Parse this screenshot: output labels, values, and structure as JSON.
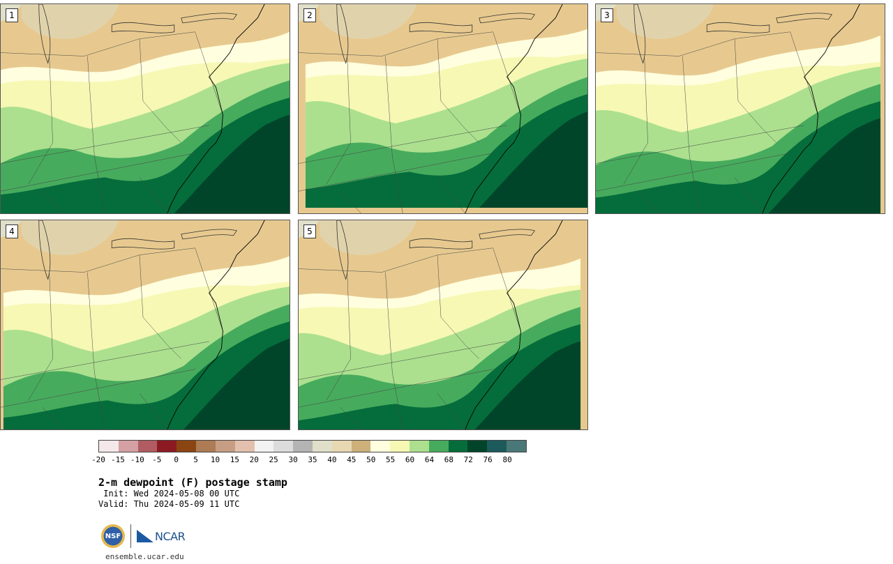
{
  "panels": [
    {
      "label": "1"
    },
    {
      "label": "2"
    },
    {
      "label": "3"
    },
    {
      "label": "4"
    },
    {
      "label": "5"
    }
  ],
  "colorbar": {
    "colors": [
      "#f5e8ea",
      "#d4a0a4",
      "#b05c62",
      "#8c1a22",
      "#8b4513",
      "#ad7b54",
      "#c79e84",
      "#e2c0ad",
      "#f2f2f2",
      "#dcdcdc",
      "#b4b4b4",
      "#e0dfc9",
      "#e8d8b2",
      "#cdb07a",
      "#fffede",
      "#f6f8b4",
      "#ace08e",
      "#47ab5d",
      "#056d3b",
      "#00452a",
      "#1d5a5c",
      "#4a7878"
    ],
    "ticks": [
      "-20",
      "-15",
      "-10",
      "-5",
      "0",
      "5",
      "10",
      "15",
      "20",
      "25",
      "30",
      "35",
      "40",
      "45",
      "50",
      "55",
      "60",
      "64",
      "68",
      "72",
      "76",
      "80"
    ]
  },
  "title": "2-m dewpoint (F) postage stamp",
  "init_line": " Init: Wed 2024-05-08 00 UTC",
  "valid_line": "Valid: Thu 2024-05-09 11 UTC",
  "logos": {
    "nsf": "NSF",
    "ncar": "NCAR"
  },
  "url": "ensemble.ucar.edu"
}
